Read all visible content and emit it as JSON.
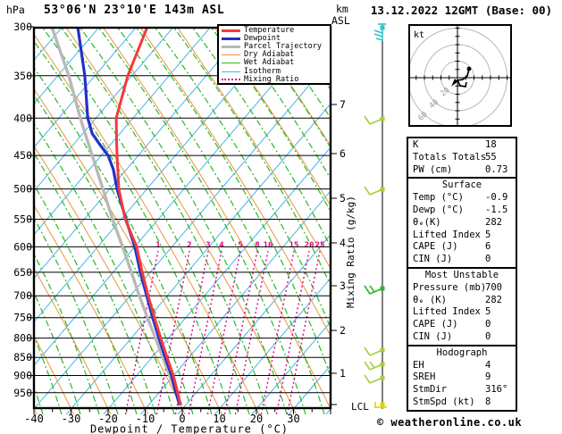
{
  "title": "53°06'N 23°10'E 143m ASL",
  "datetime": "13.12.2022 12GMT (Base: 00)",
  "units": {
    "pressure": "hPa",
    "height_line1": "km",
    "height_line2": "ASL"
  },
  "legend": [
    {
      "label": "Temperature",
      "color": "#f23b3b",
      "thick": 3,
      "dash": ""
    },
    {
      "label": "Dewpoint",
      "color": "#2331cc",
      "thick": 3,
      "dash": ""
    },
    {
      "label": "Parcel Trajectory",
      "color": "#b8b8b8",
      "thick": 3,
      "dash": ""
    },
    {
      "label": "Dry Adiabat",
      "color": "#e8963c",
      "thick": 1,
      "dash": ""
    },
    {
      "label": "Wet Adiabat",
      "color": "#28b828",
      "thick": 1,
      "dash": ""
    },
    {
      "label": "Isotherm",
      "color": "#46b4e6",
      "thick": 1,
      "dash": ""
    },
    {
      "label": "Mixing Ratio",
      "color": "#e00080",
      "thick": 2,
      "dash": "2 3"
    }
  ],
  "axes": {
    "pressure_ticks": [
      300,
      350,
      400,
      450,
      500,
      550,
      600,
      650,
      700,
      750,
      800,
      850,
      900,
      950
    ],
    "temp_ticks": [
      -40,
      -30,
      -20,
      -10,
      0,
      10,
      20,
      30
    ],
    "x_label": "Dewpoint / Temperature (°C)",
    "km_ticks": [
      7,
      6,
      5,
      4,
      3,
      2,
      1
    ],
    "km_y": [
      117,
      172,
      222,
      272,
      320,
      370,
      418
    ],
    "mixing_axis_label": "Mixing Ratio (g/kg)",
    "lcl_label": "LCL"
  },
  "mixing_ratio_labels": {
    "values": [
      "1",
      "2",
      "3",
      "4",
      "5",
      "8",
      "10",
      "15",
      "20",
      "25"
    ],
    "x": [
      177,
      212,
      233,
      248,
      269,
      288,
      300,
      329,
      346,
      358
    ]
  },
  "chart_data": {
    "type": "line",
    "note": "Skew-T log-P sounding; point x-values are °C read on the bottom axis scale where the curve is plotted, y is pressure in hPa (log scale 300-1000)",
    "pressure_range": [
      300,
      1000
    ],
    "temp_axis_range": [
      -40,
      40
    ],
    "series": [
      {
        "name": "Temperature",
        "color": "#f23b3b",
        "points": [
          [
            300,
            -9.4
          ],
          [
            350,
            -14.7
          ],
          [
            400,
            -17.8
          ],
          [
            430,
            -17.7
          ],
          [
            450,
            -17.6
          ],
          [
            500,
            -17.1
          ],
          [
            550,
            -15.4
          ],
          [
            575,
            -13.8
          ],
          [
            600,
            -12.3
          ],
          [
            650,
            -10.8
          ],
          [
            700,
            -9.2
          ],
          [
            750,
            -7.5
          ],
          [
            800,
            -5.8
          ],
          [
            850,
            -4.1
          ],
          [
            900,
            -2.4
          ],
          [
            950,
            -1.2
          ],
          [
            988,
            -0.5
          ]
        ]
      },
      {
        "name": "Dewpoint",
        "color": "#2331cc",
        "points": [
          [
            300,
            -28.2
          ],
          [
            350,
            -26.3
          ],
          [
            400,
            -25.5
          ],
          [
            420,
            -24.3
          ],
          [
            435,
            -22.2
          ],
          [
            450,
            -20.0
          ],
          [
            470,
            -18.6
          ],
          [
            500,
            -17.6
          ],
          [
            550,
            -15.2
          ],
          [
            600,
            -12.8
          ],
          [
            650,
            -11.3
          ],
          [
            700,
            -9.6
          ],
          [
            750,
            -8.0
          ],
          [
            800,
            -6.3
          ],
          [
            850,
            -4.6
          ],
          [
            900,
            -2.9
          ],
          [
            950,
            -1.7
          ],
          [
            988,
            -0.7
          ]
        ]
      },
      {
        "name": "Parcel Trajectory",
        "color": "#b8b8b8",
        "points": [
          [
            300,
            -35.2
          ],
          [
            350,
            -30.6
          ],
          [
            400,
            -27.5
          ],
          [
            450,
            -24.3
          ],
          [
            500,
            -21.4
          ],
          [
            550,
            -18.8
          ],
          [
            600,
            -16.1
          ],
          [
            650,
            -13.7
          ],
          [
            700,
            -11.6
          ],
          [
            750,
            -9.4
          ],
          [
            800,
            -7.2
          ],
          [
            850,
            -5.3
          ],
          [
            900,
            -3.4
          ],
          [
            950,
            -1.7
          ],
          [
            988,
            -0.2
          ]
        ]
      }
    ]
  },
  "hodograph": {
    "unit": "kt",
    "ring_labels": [
      "20",
      "40",
      "60"
    ],
    "ring_radii": [
      18.5,
      37,
      55.5
    ],
    "trace_main": [
      [
        66,
        48
      ],
      [
        64,
        56
      ],
      [
        59,
        60
      ],
      [
        53,
        61
      ],
      [
        49,
        65
      ]
    ],
    "trace_branch": [
      [
        53,
        61
      ],
      [
        56,
        67
      ],
      [
        62,
        68
      ],
      [
        63,
        63
      ]
    ],
    "dot": [
      66,
      48
    ]
  },
  "panels": [
    {
      "id": "indices",
      "title": "",
      "rows": [
        {
          "label": "K",
          "value": "18"
        },
        {
          "label": "Totals Totals",
          "value": "55"
        },
        {
          "label": "PW (cm)",
          "value": "0.73"
        }
      ]
    },
    {
      "id": "surface",
      "title": "Surface",
      "rows": [
        {
          "label": "Temp (°C)",
          "value": "-0.9"
        },
        {
          "label": "Dewp (°C)",
          "value": "-1.5"
        },
        {
          "label": "θₑ(K)",
          "value": "282"
        },
        {
          "label": "Lifted Index",
          "value": "5"
        },
        {
          "label": "CAPE (J)",
          "value": "6"
        },
        {
          "label": "CIN (J)",
          "value": "0"
        }
      ]
    },
    {
      "id": "most-unstable",
      "title": "Most Unstable",
      "rows": [
        {
          "label": "Pressure (mb)",
          "value": "700"
        },
        {
          "label": "θₑ (K)",
          "value": "282"
        },
        {
          "label": "Lifted Index",
          "value": "5"
        },
        {
          "label": "CAPE (J)",
          "value": "0"
        },
        {
          "label": "CIN (J)",
          "value": "0"
        }
      ]
    },
    {
      "id": "hodograph",
      "title": "Hodograph",
      "rows": [
        {
          "label": "EH",
          "value": "4"
        },
        {
          "label": "SREH",
          "value": "9"
        },
        {
          "label": "StmDir",
          "value": "316°"
        },
        {
          "label": "StmSpd (kt)",
          "value": "8"
        }
      ]
    }
  ],
  "wind_barbs": [
    {
      "y": 31,
      "color": "#35c0c8",
      "type": "top"
    },
    {
      "y": 133,
      "color": "#a6cf3c",
      "type": "sw1"
    },
    {
      "y": 212,
      "color": "#a6cf3c",
      "type": "sw1"
    },
    {
      "y": 323,
      "color": "#2cb42c",
      "type": "sw2"
    },
    {
      "y": 392,
      "color": "#a6cf3c",
      "type": "sw1"
    },
    {
      "y": 408,
      "color": "#a6cf3c",
      "type": "sw2"
    },
    {
      "y": 423,
      "color": "#a6cf3c",
      "type": "sw1"
    }
  ],
  "colors": {
    "isobar": "#000000",
    "isotherm": "#46b4e6",
    "dry_adiabat": "#e8963c",
    "wet_adiabat": "#28b828",
    "mixing_ratio": "#e00080",
    "lcl_marker": "#ddd400",
    "hodo_ring": "#b8b8b8"
  },
  "footer": "© weatheronline.co.uk"
}
